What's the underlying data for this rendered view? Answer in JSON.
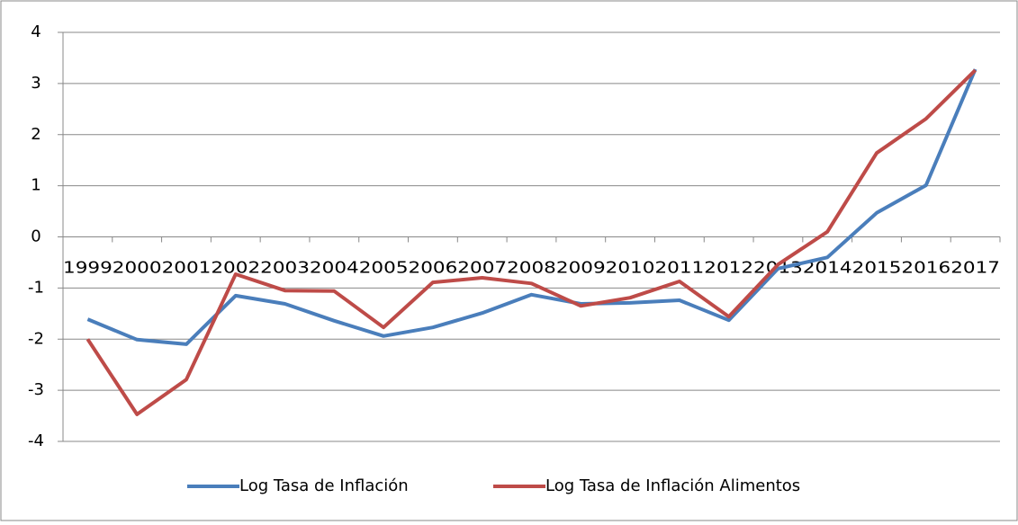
{
  "chart_data": {
    "type": "line",
    "categories": [
      "1999",
      "2000",
      "2001",
      "2002",
      "2003",
      "2004",
      "2005",
      "2006",
      "2007",
      "2008",
      "2009",
      "2010",
      "2011",
      "2012",
      "2013",
      "2014",
      "2015",
      "2016",
      "2017"
    ],
    "series": [
      {
        "name": "Log Tasa de Inflación",
        "color": "#4a7ebb",
        "values": [
          -1.61,
          -2.01,
          -2.1,
          -1.15,
          -1.31,
          -1.64,
          -1.94,
          -1.77,
          -1.49,
          -1.13,
          -1.31,
          -1.29,
          -1.24,
          -1.63,
          -0.62,
          -0.4,
          0.47,
          1.01,
          3.28
        ]
      },
      {
        "name": "Log Tasa de Inflación Alimentos",
        "color": "#be4b48",
        "values": [
          -2.0,
          -3.47,
          -2.79,
          -0.73,
          -1.05,
          -1.06,
          -1.77,
          -0.89,
          -0.8,
          -0.91,
          -1.35,
          -1.19,
          -0.87,
          -1.56,
          -0.54,
          0.1,
          1.64,
          2.31,
          3.26
        ]
      }
    ],
    "ylim": [
      -4,
      4
    ],
    "yticks": [
      -4,
      -3,
      -2,
      -1,
      0,
      1,
      2,
      3,
      4
    ],
    "grid": true,
    "legend": "bottom"
  }
}
